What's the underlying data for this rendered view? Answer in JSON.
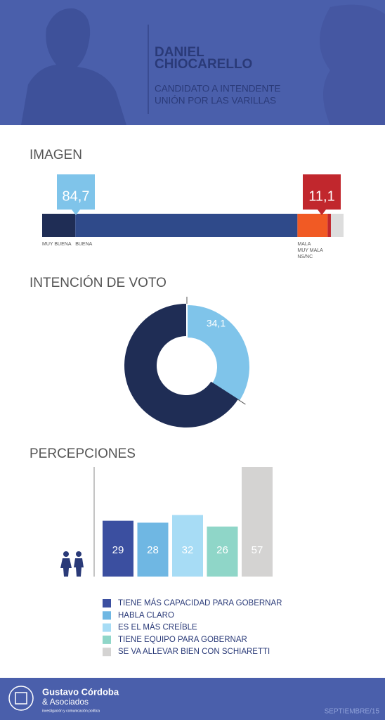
{
  "header": {
    "name_lines": [
      "DANIEL",
      "CHIOCARELLO"
    ],
    "subtitle_lines": [
      "CANDIDATO A INTENDENTE",
      "UNIÓN POR LAS VARILLAS"
    ]
  },
  "chart_data": [
    {
      "type": "stacked-bar",
      "title": "IMAGEN",
      "categories": [
        "MUY BUENA",
        "BUENA",
        "MALA",
        "MUY MALA",
        "NS/NC"
      ],
      "values": [
        11,
        73.7,
        10,
        1.1,
        4.2
      ],
      "colors": [
        "#1f2d55",
        "#2f4a8a",
        "#f15a24",
        "#c1272d",
        "#dddddd"
      ],
      "xlim": [
        0,
        100
      ],
      "callouts": [
        {
          "value": 84.7,
          "label": "84,7",
          "color": "#7fc4ea"
        },
        {
          "value": 11.1,
          "label": "11,1",
          "color": "#c1272d"
        }
      ]
    },
    {
      "type": "donut",
      "title": "INTENCIÓN DE VOTO",
      "values": [
        34.1,
        65.9
      ],
      "value_labels": [
        "34,1",
        null
      ],
      "colors": [
        "#7fc4ea",
        "#1f2d55"
      ]
    },
    {
      "type": "bar",
      "title": "PERCEPCIONES",
      "categories": [
        "TIENE MÁS CAPACIDAD PARA GOBERNAR",
        "HABLA CLARO",
        "ES EL MÁS CREÍBLE",
        "TIENE EQUIPO PARA GOBERNAR",
        "SE VA ALLEVAR BIEN CON SCHIARETTI"
      ],
      "values": [
        29,
        28,
        32,
        26,
        57
      ],
      "colors": [
        "#3b4fa0",
        "#6fb7e3",
        "#a7dcf5",
        "#8fd6c8",
        "#d4d3d2"
      ],
      "ylim": [
        0,
        57
      ]
    }
  ],
  "footer": {
    "brand": "Gustavo Córdoba",
    "brand_sub": "& Asociados",
    "tagline": "investigación y comunicación política",
    "date": "SEPTIEMBRE/15"
  }
}
